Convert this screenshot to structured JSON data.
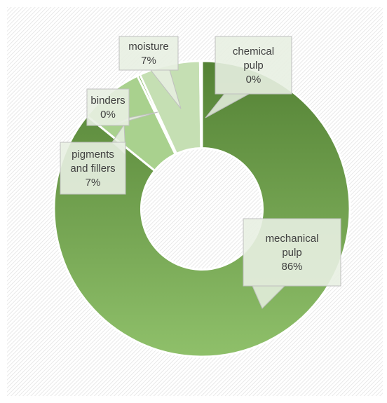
{
  "chart_data": {
    "type": "donut",
    "title": "",
    "hole_ratio": 0.41,
    "start_angle_deg": 0,
    "direction": "clockwise",
    "categories": [
      "mechanical pulp",
      "pigments and fillers",
      "binders",
      "moisture",
      "chemical pulp"
    ],
    "values": [
      86,
      7,
      0.3,
      6.7,
      0.2
    ],
    "labels": [
      {
        "name_lines": [
          "mechanical",
          "pulp"
        ],
        "pct": "86%"
      },
      {
        "name_lines": [
          "pigments",
          "and fillers"
        ],
        "pct": "7%"
      },
      {
        "name_lines": [
          "binders"
        ],
        "pct": "0%"
      },
      {
        "name_lines": [
          "moisture"
        ],
        "pct": "7%"
      },
      {
        "name_lines": [
          "chemical",
          "pulp"
        ],
        "pct": "0%"
      }
    ],
    "colors": {
      "mechanical pulp": [
        "#548235",
        "#8fc06a"
      ],
      "pigments and fillers": [
        "#a9d18e",
        "#a9d18e"
      ],
      "binders": [
        "#6fa84a",
        "#6fa84a"
      ],
      "moisture": [
        "#c5dfb3",
        "#c5dfb3"
      ],
      "chemical pulp": [
        "#4e7a2e",
        "#4e7a2e"
      ]
    },
    "background": "hatched light gray",
    "legend": "none"
  }
}
